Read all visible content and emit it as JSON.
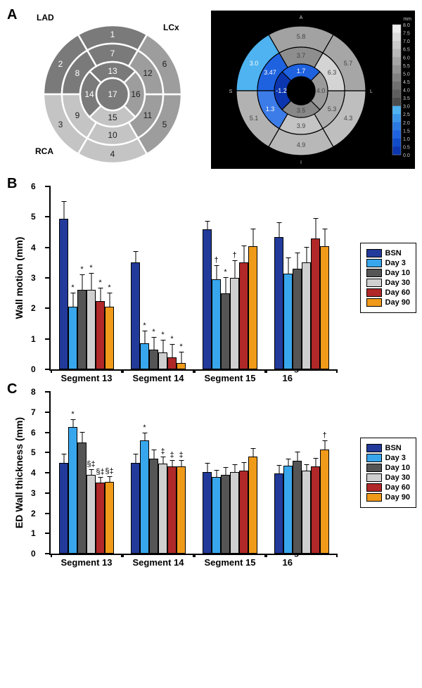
{
  "panelA": {
    "label": "A",
    "artery_labels": {
      "LAD": "LAD",
      "LCx": "LCx",
      "RCA": "RCA"
    },
    "left_bullseye": {
      "colors": {
        "LAD": "#7a7a7a",
        "LCx": "#9d9d9d",
        "RCA": "#c4c4c4",
        "center": "#7a7a7a",
        "stroke": "#ffffff"
      },
      "segments": [
        1,
        2,
        3,
        4,
        5,
        6,
        7,
        8,
        9,
        10,
        11,
        12,
        13,
        14,
        15,
        16,
        17
      ]
    },
    "right_bullseye": {
      "background": "#000000",
      "scale_label": "mm",
      "scale_ticks": [
        "8.0",
        "7.5",
        "7.0",
        "6.5",
        "6.0",
        "5.5",
        "5.0",
        "4.5",
        "4.0",
        "3.5",
        "3.0",
        "2.5",
        "2.0",
        "1.5",
        "1.0",
        "0.5",
        "0.0"
      ],
      "scale_colors_top": "#eeeeee",
      "scale_colors_mid": "#8a8a8a",
      "scale_colors_blue1": "#4eb3f0",
      "scale_colors_blue2": "#1e62e0",
      "scale_colors_blue3": "#0b36b0",
      "segment_values": {
        "1": {
          "v": "5.8",
          "c": "#a2a2a2"
        },
        "2": {
          "v": "3.0",
          "c": "#4eb3f0"
        },
        "3": {
          "v": "5.1",
          "c": "#b2b2b2"
        },
        "4": {
          "v": "4.9",
          "c": "#b8b8b8"
        },
        "5": {
          "v": "4.3",
          "c": "#bebebe"
        },
        "6": {
          "v": "5.7",
          "c": "#a6a6a6"
        },
        "7": {
          "v": "3.7",
          "c": "#8e8e8e"
        },
        "8": {
          "v": "3.47",
          "c": "#1e62e0"
        },
        "9": {
          "v": "1.3",
          "c": "#3c7ce8"
        },
        "10": {
          "v": "3.9",
          "c": "#c4c4c4"
        },
        "11": {
          "v": "5.3",
          "c": "#aeaeae"
        },
        "12": {
          "v": "6.3",
          "c": "#d4d4d4"
        },
        "13": {
          "v": "1.7",
          "c": "#1e62e0"
        },
        "14": {
          "v": "-1.2",
          "c": "#0b36b0"
        },
        "15": {
          "v": "3.5",
          "c": "#888888"
        },
        "16": {
          "v": "4.0",
          "c": "#9a9a9a"
        }
      }
    }
  },
  "legend": {
    "items": [
      {
        "label": "BSN",
        "color": "#223a9a"
      },
      {
        "label": "Day 3",
        "color": "#38a6ec"
      },
      {
        "label": "Day 10",
        "color": "#555555"
      },
      {
        "label": "Day 30",
        "color": "#cfcfcf"
      },
      {
        "label": "Day 60",
        "color": "#b02828"
      },
      {
        "label": "Day 90",
        "color": "#f09a1a"
      }
    ]
  },
  "panelB": {
    "label": "B",
    "y_label": "Wall motion (mm)",
    "ylim": [
      0,
      6
    ],
    "ytick_step": 1,
    "segments": [
      "Segment 13",
      "Segment 14",
      "Segment 15",
      "Segment 16"
    ],
    "bars": [
      [
        {
          "v": 4.95,
          "e": 0.55,
          "s": ""
        },
        {
          "v": 2.05,
          "e": 0.45,
          "s": "*"
        },
        {
          "v": 2.6,
          "e": 0.5,
          "s": "*"
        },
        {
          "v": 2.6,
          "e": 0.55,
          "s": "*"
        },
        {
          "v": 2.25,
          "e": 0.4,
          "s": "*"
        },
        {
          "v": 2.05,
          "e": 0.45,
          "s": "*"
        }
      ],
      [
        {
          "v": 3.5,
          "e": 0.35,
          "s": ""
        },
        {
          "v": 0.85,
          "e": 0.4,
          "s": "*"
        },
        {
          "v": 0.65,
          "e": 0.4,
          "s": "*"
        },
        {
          "v": 0.55,
          "e": 0.4,
          "s": "*"
        },
        {
          "v": 0.4,
          "e": 0.4,
          "s": "*"
        },
        {
          "v": 0.2,
          "e": 0.35,
          "s": "*"
        }
      ],
      [
        {
          "v": 4.6,
          "e": 0.25,
          "s": ""
        },
        {
          "v": 2.95,
          "e": 0.45,
          "s": "†"
        },
        {
          "v": 2.5,
          "e": 0.5,
          "s": "*"
        },
        {
          "v": 3.0,
          "e": 0.55,
          "s": "†"
        },
        {
          "v": 3.5,
          "e": 0.55,
          "s": ""
        },
        {
          "v": 4.05,
          "e": 0.55,
          "s": ""
        }
      ],
      [
        {
          "v": 4.35,
          "e": 0.45,
          "s": ""
        },
        {
          "v": 3.15,
          "e": 0.5,
          "s": ""
        },
        {
          "v": 3.3,
          "e": 0.5,
          "s": ""
        },
        {
          "v": 3.5,
          "e": 0.5,
          "s": ""
        },
        {
          "v": 4.3,
          "e": 0.65,
          "s": ""
        },
        {
          "v": 4.05,
          "e": 0.55,
          "s": ""
        }
      ]
    ]
  },
  "panelC": {
    "label": "C",
    "y_label": "ED Wall thickness (mm)",
    "ylim": [
      0,
      8
    ],
    "ytick_step": 1,
    "segments": [
      "Segment 13",
      "Segment 14",
      "Segment 15",
      "Segment 16"
    ],
    "bars": [
      [
        {
          "v": 4.5,
          "e": 0.4,
          "s": ""
        },
        {
          "v": 6.25,
          "e": 0.35,
          "s": "*"
        },
        {
          "v": 5.5,
          "e": 0.5,
          "s": ""
        },
        {
          "v": 3.9,
          "e": 0.25,
          "s": "§‡"
        },
        {
          "v": 3.5,
          "e": 0.25,
          "s": "§‡"
        },
        {
          "v": 3.55,
          "e": 0.25,
          "s": "§‡"
        }
      ],
      [
        {
          "v": 4.5,
          "e": 0.4,
          "s": ""
        },
        {
          "v": 5.6,
          "e": 0.35,
          "s": "*"
        },
        {
          "v": 4.7,
          "e": 0.4,
          "s": ""
        },
        {
          "v": 4.45,
          "e": 0.3,
          "s": "‡"
        },
        {
          "v": 4.3,
          "e": 0.3,
          "s": "‡"
        },
        {
          "v": 4.3,
          "e": 0.3,
          "s": "‡"
        }
      ],
      [
        {
          "v": 4.05,
          "e": 0.4,
          "s": ""
        },
        {
          "v": 3.8,
          "e": 0.3,
          "s": ""
        },
        {
          "v": 3.9,
          "e": 0.35,
          "s": ""
        },
        {
          "v": 4.05,
          "e": 0.35,
          "s": ""
        },
        {
          "v": 4.1,
          "e": 0.4,
          "s": ""
        },
        {
          "v": 4.8,
          "e": 0.4,
          "s": ""
        }
      ],
      [
        {
          "v": 3.95,
          "e": 0.4,
          "s": ""
        },
        {
          "v": 4.35,
          "e": 0.3,
          "s": ""
        },
        {
          "v": 4.6,
          "e": 0.4,
          "s": ""
        },
        {
          "v": 4.1,
          "e": 0.3,
          "s": ""
        },
        {
          "v": 4.3,
          "e": 0.4,
          "s": ""
        },
        {
          "v": 5.15,
          "e": 0.4,
          "s": "†"
        }
      ]
    ]
  }
}
